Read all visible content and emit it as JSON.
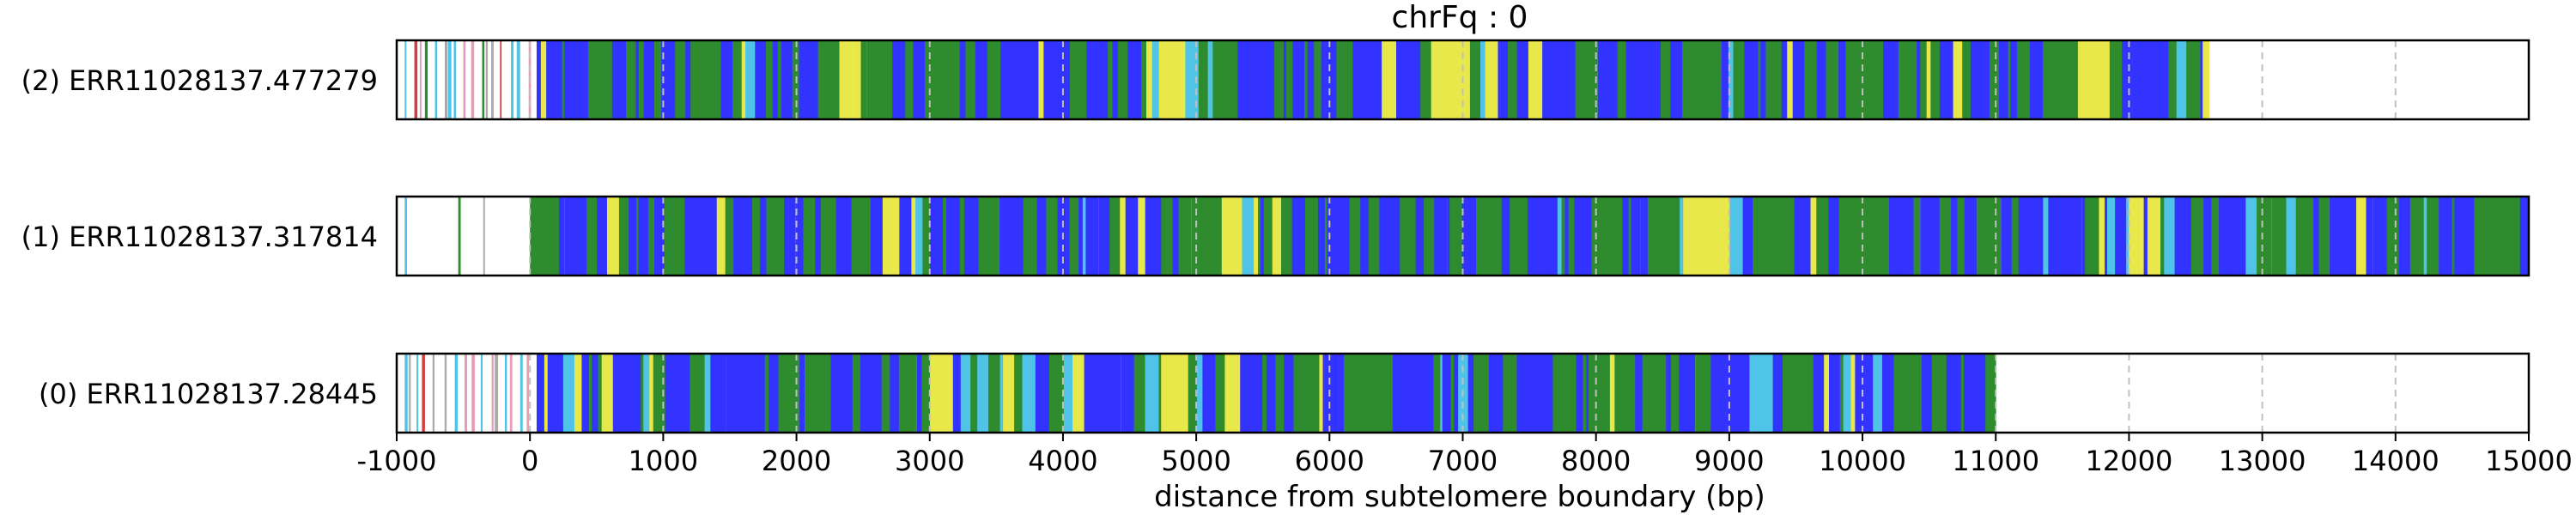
{
  "chart_data": {
    "type": "bar",
    "title": "chrFq : 0",
    "xlabel": "distance from subtelomere boundary (bp)",
    "ylabel": "",
    "xlim": [
      -1000,
      15000
    ],
    "x_ticks": [
      -1000,
      0,
      1000,
      2000,
      3000,
      4000,
      5000,
      6000,
      7000,
      8000,
      9000,
      10000,
      11000,
      12000,
      13000,
      14000,
      15000
    ],
    "x_tick_labels": [
      "-1000",
      "0",
      "1000",
      "2000",
      "3000",
      "4000",
      "5000",
      "6000",
      "7000",
      "8000",
      "9000",
      "10000",
      "11000",
      "12000",
      "13000",
      "14000",
      "15000"
    ],
    "grid": "vertical dashed at tick positions",
    "colors": {
      "blue": "#3333ff",
      "green": "#2e8b2e",
      "yellow": "#e8e84a",
      "cyan": "#4fc3e8",
      "pink": "#e89ab8",
      "red": "#d04040",
      "gray": "#aaaaaa"
    },
    "reads": [
      {
        "label": "(2) ERR11028137.477279",
        "start": -1000,
        "end": 12600,
        "dense_start": 50,
        "dominant": [
          "blue",
          "green"
        ],
        "accent_regions": [
          [
            2400,
            2900
          ],
          [
            4600,
            5200
          ],
          [
            6700,
            7600
          ],
          [
            11600,
            12000
          ]
        ]
      },
      {
        "label": "(1) ERR11028137.317814",
        "start": -1000,
        "end": 15000,
        "dense_start": 0,
        "dominant": [
          "blue",
          "green"
        ],
        "accent_regions": [
          [
            2500,
            3000
          ],
          [
            5000,
            5600
          ],
          [
            8600,
            9000
          ],
          [
            11800,
            12300
          ]
        ]
      },
      {
        "label": "(0) ERR11028137.28445",
        "start": -1000,
        "end": 11000,
        "dense_start": 50,
        "dominant": [
          "blue",
          "green"
        ],
        "accent_regions": [
          [
            100,
            900
          ],
          [
            3000,
            4100
          ],
          [
            4600,
            5300
          ],
          [
            9600,
            10400
          ]
        ]
      }
    ]
  }
}
